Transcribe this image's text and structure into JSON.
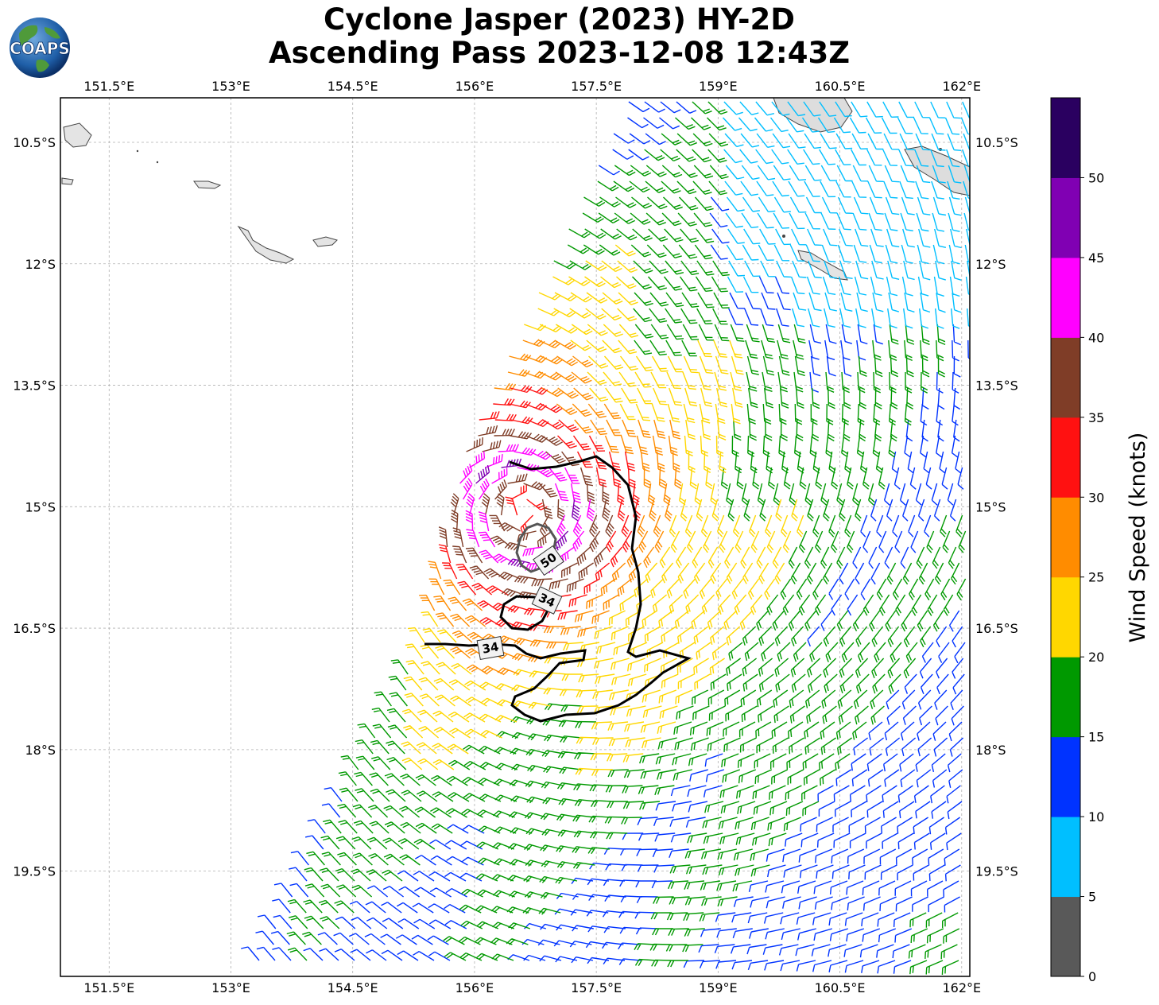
{
  "title": {
    "line1": "Cyclone Jasper (2023) HY-2D",
    "line2": "Ascending Pass 2023-12-08 12:43Z"
  },
  "logo": {
    "text": "COAPS",
    "icon": "globe-icon"
  },
  "map": {
    "lon_range": [
      150.9,
      162.1
    ],
    "lat_range": [
      -20.8,
      -9.95
    ],
    "lon_ticks": [
      "151.5°E",
      "153°E",
      "154.5°E",
      "156°E",
      "157.5°E",
      "159°E",
      "160.5°E",
      "162°E"
    ],
    "lon_tick_values": [
      151.5,
      153,
      154.5,
      156,
      157.5,
      159,
      160.5,
      162
    ],
    "lat_ticks": [
      "10.5°S",
      "12°S",
      "13.5°S",
      "15°S",
      "16.5°S",
      "18°S",
      "19.5°S"
    ],
    "lat_tick_values": [
      -10.5,
      -12,
      -13.5,
      -15,
      -16.5,
      -18,
      -19.5
    ],
    "grid": true,
    "storm_center": {
      "lon": 156.6,
      "lat": -15.05
    },
    "contours": [
      {
        "label": "50",
        "value": 50,
        "color": "#555555"
      },
      {
        "label": "34",
        "value": 34,
        "color": "#000000"
      },
      {
        "label": "34",
        "value": 34,
        "color": "#000000"
      }
    ]
  },
  "colorbar": {
    "title": "Wind Speed (knots)",
    "bins": [
      0,
      5,
      10,
      15,
      20,
      25,
      30,
      35,
      40,
      45,
      50,
      55
    ],
    "tick_labels": [
      "0",
      "5",
      "10",
      "15",
      "20",
      "25",
      "30",
      "35",
      "40",
      "45",
      "50"
    ],
    "colors": [
      "#595959",
      "#00bfff",
      "#0033ff",
      "#009900",
      "#009900",
      "#ffd700",
      "#ff8c00",
      "#ff1111",
      "#7f3d27",
      "#ff00ff",
      "#8000b3",
      "#2a0060"
    ],
    "segment_colors": [
      "#595959",
      "#00bfff",
      "#0033ff",
      "#009900",
      "#ffd700",
      "#ff8c00",
      "#ff1111",
      "#7f3d27",
      "#ff00ff",
      "#8000b3",
      "#2a0060"
    ]
  }
}
